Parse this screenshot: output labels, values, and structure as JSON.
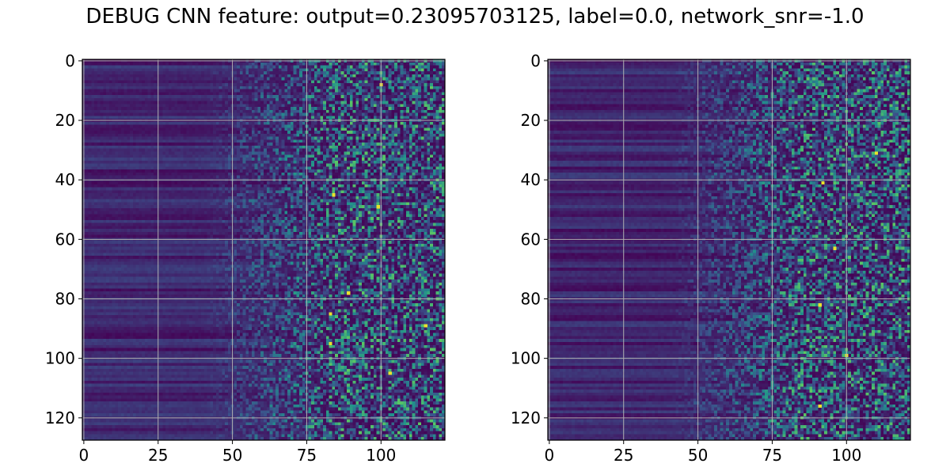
{
  "title": "DEBUG CNN feature: output=0.23095703125, label=0.0, network_snr=-1.0",
  "chart_data": [
    {
      "type": "heatmap",
      "name": "left",
      "colormap": "viridis",
      "rows": 128,
      "cols": 122,
      "xlim": [
        -0.5,
        121.5
      ],
      "ylim": [
        127.5,
        -0.5
      ],
      "xticks": [
        0,
        25,
        50,
        75,
        100
      ],
      "yticks": [
        0,
        20,
        40,
        60,
        80,
        100,
        120
      ],
      "grid": true,
      "seed": 7,
      "hotspots": [
        [
          85,
          83
        ],
        [
          95,
          83
        ],
        [
          89,
          115
        ],
        [
          49,
          99
        ],
        [
          78,
          89
        ],
        [
          105,
          103
        ],
        [
          45,
          84
        ],
        [
          8,
          100
        ]
      ]
    },
    {
      "type": "heatmap",
      "name": "right",
      "colormap": "viridis",
      "rows": 128,
      "cols": 122,
      "xlim": [
        -0.5,
        121.5
      ],
      "ylim": [
        127.5,
        -0.5
      ],
      "xticks": [
        0,
        25,
        50,
        75,
        100
      ],
      "yticks": [
        0,
        20,
        40,
        60,
        80,
        100,
        120
      ],
      "grid": true,
      "seed": 19,
      "hotspots": [
        [
          41,
          92
        ],
        [
          63,
          96
        ],
        [
          31,
          110
        ],
        [
          82,
          91
        ],
        [
          99,
          100
        ],
        [
          116,
          91
        ]
      ]
    }
  ]
}
